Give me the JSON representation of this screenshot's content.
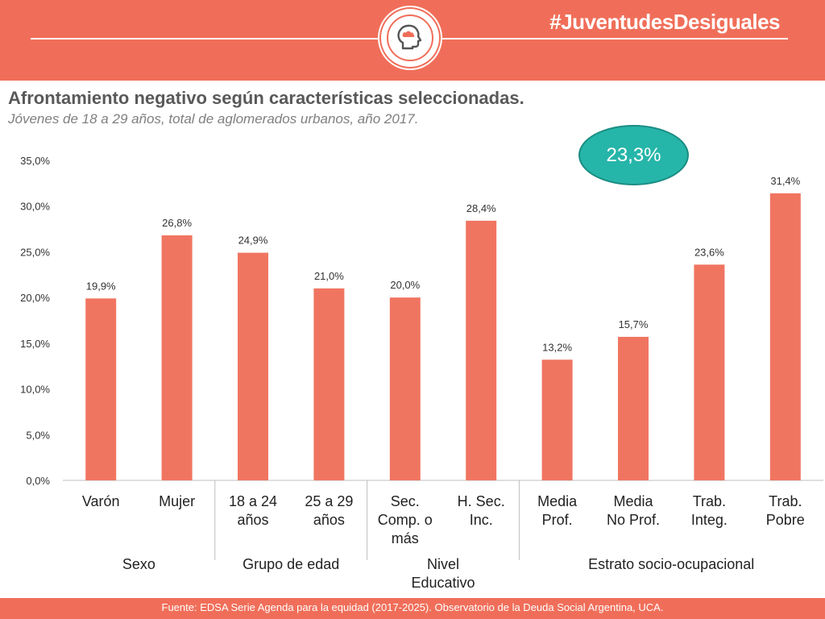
{
  "header": {
    "hashtag": "#JuventudesDesiguales",
    "logo_icon": "head-cloud-icon"
  },
  "highlight": {
    "value": "23,3%"
  },
  "footer": {
    "source": "Fuente: EDSA Serie Agenda para la equidad (2017-2025). Observatorio de la Deuda Social Argentina, UCA."
  },
  "colors": {
    "accent": "#f06e59",
    "bar": "#f07561",
    "highlight": "#26b5a9"
  },
  "chart_data": {
    "type": "bar",
    "title": "Afrontamiento negativo según características seleccionadas.",
    "subtitle": "Jóvenes de 18 a 29 años, total de aglomerados urbanos, año 2017.",
    "ylim": [
      0,
      35
    ],
    "yticks": [
      0,
      5,
      10,
      15,
      20,
      25,
      30,
      35
    ],
    "ytick_labels": [
      "0,0%",
      "5,0%",
      "10,0%",
      "15,0%",
      "20,0%",
      "25,0%",
      "30,0%",
      "35,0%"
    ],
    "grid": false,
    "categories": [
      [
        "Varón"
      ],
      [
        "Mujer"
      ],
      [
        "18 a 24",
        "años"
      ],
      [
        "25 a 29",
        "años"
      ],
      [
        "Sec.",
        "Comp. o",
        "más"
      ],
      [
        "H. Sec.",
        "Inc."
      ],
      [
        "Media",
        "Prof."
      ],
      [
        "Media",
        "No Prof."
      ],
      [
        "Trab.",
        "Integ."
      ],
      [
        "Trab.",
        "Pobre"
      ]
    ],
    "values": [
      19.9,
      26.8,
      24.9,
      21.0,
      20.0,
      28.4,
      13.2,
      15.7,
      23.6,
      31.4
    ],
    "value_labels": [
      "19,9%",
      "26,8%",
      "24,9%",
      "21,0%",
      "20,0%",
      "28,4%",
      "13,2%",
      "15,7%",
      "23,6%",
      "31,4%"
    ],
    "groups": [
      {
        "label": [
          "Sexo"
        ],
        "start": 0,
        "end": 1
      },
      {
        "label": [
          "Grupo de edad"
        ],
        "start": 2,
        "end": 3
      },
      {
        "label": [
          "Nivel",
          "Educativo"
        ],
        "start": 4,
        "end": 5
      },
      {
        "label": [
          "Estrato socio-ocupacional"
        ],
        "start": 6,
        "end": 9
      }
    ]
  }
}
